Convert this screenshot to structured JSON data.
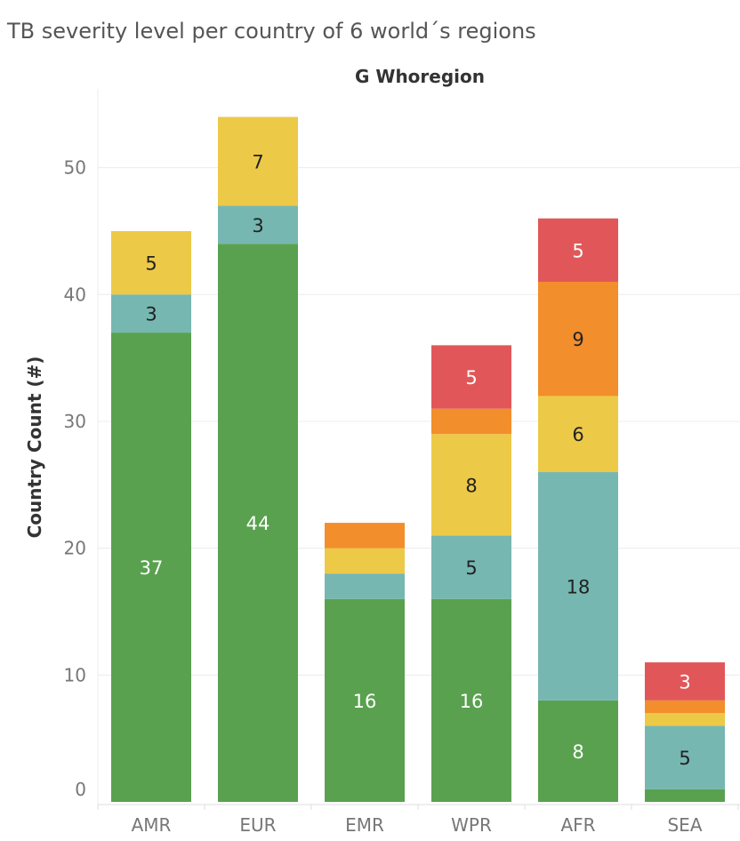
{
  "chart_data": {
    "type": "bar",
    "stacked": true,
    "title": "TB severity level per country of 6 world´s regions",
    "facet_label": "G Whoregion",
    "ylabel": "Country Count (#)",
    "xlabel": "",
    "categories": [
      "AMR",
      "EUR",
      "EMR",
      "WPR",
      "AFR",
      "SEA"
    ],
    "ylim": [
      0,
      56
    ],
    "yticks": [
      0,
      10,
      20,
      30,
      40,
      50
    ],
    "grid": true,
    "series": [
      {
        "color": "#59a14f",
        "label_color": "#ffffff",
        "values": [
          37,
          44,
          16,
          16,
          8,
          1
        ]
      },
      {
        "color": "#76b7b2",
        "label_color": "#222222",
        "values": [
          3,
          3,
          2,
          5,
          18,
          5
        ]
      },
      {
        "color": "#edc948",
        "label_color": "#222222",
        "values": [
          5,
          7,
          2,
          8,
          6,
          1
        ]
      },
      {
        "color": "#f28e2b",
        "label_color": "#222222",
        "values": [
          0,
          0,
          2,
          2,
          9,
          1
        ]
      },
      {
        "color": "#e15759",
        "label_color": "#ffffff",
        "values": [
          0,
          0,
          0,
          5,
          5,
          3
        ]
      }
    ],
    "segment_labels": [
      [
        "37",
        "44",
        "16",
        "16",
        "8",
        ""
      ],
      [
        "3",
        "3",
        "",
        "5",
        "18",
        "5"
      ],
      [
        "5",
        "7",
        "",
        "8",
        "6",
        ""
      ],
      [
        "",
        "",
        "",
        "",
        "9",
        ""
      ],
      [
        "",
        "",
        "",
        "5",
        "5",
        "3"
      ]
    ]
  }
}
